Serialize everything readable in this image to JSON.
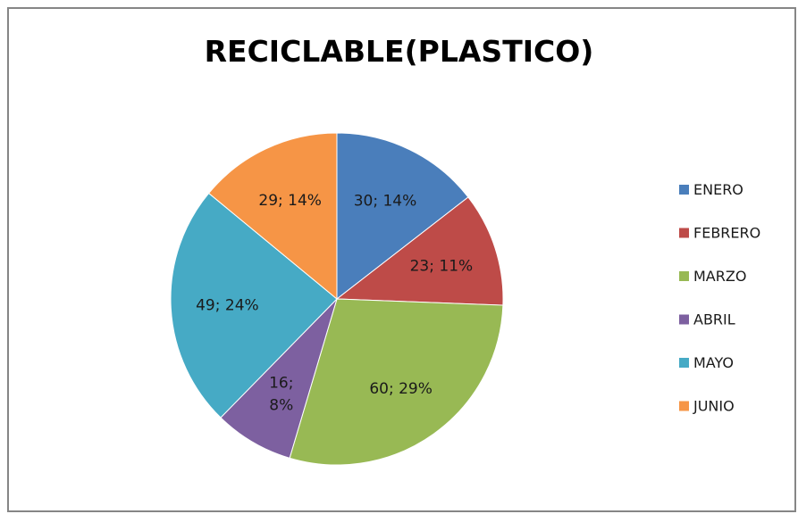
{
  "chart_data": {
    "type": "pie",
    "title": "RECICLABLE(PLASTICO)",
    "legend_position": "right",
    "slices": [
      {
        "name": "ENERO",
        "value": 30,
        "percent": "14%",
        "color": "#4A7EBB",
        "label_lines": [
          "30; 14%"
        ]
      },
      {
        "name": "FEBRERO",
        "value": 23,
        "percent": "11%",
        "color": "#BE4B48",
        "label_lines": [
          "23; 11%"
        ]
      },
      {
        "name": "MARZO",
        "value": 60,
        "percent": "29%",
        "color": "#98B954",
        "label_lines": [
          "60; 29%"
        ]
      },
      {
        "name": "ABRIL",
        "value": 16,
        "percent": "8%",
        "color": "#7D60A0",
        "label_lines": [
          "16;",
          "8%"
        ]
      },
      {
        "name": "MAYO",
        "value": 49,
        "percent": "24%",
        "color": "#46AAC5",
        "label_lines": [
          "49; 24%"
        ]
      },
      {
        "name": "JUNIO",
        "value": 29,
        "percent": "14%",
        "color": "#F69546",
        "label_lines": [
          "29; 14%"
        ]
      }
    ]
  }
}
